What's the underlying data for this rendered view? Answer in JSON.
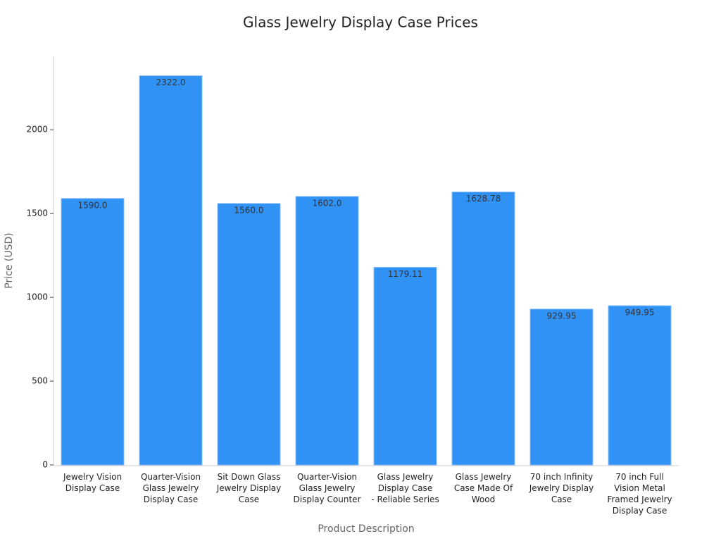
{
  "chart_data": {
    "type": "bar",
    "title": "Glass Jewelry Display Case Prices",
    "x_label": "Product Description",
    "y_label": "Price (USD)",
    "categories": [
      "Jewelry Vision\nDisplay Case",
      "Quarter-Vision\nGlass Jewelry\nDisplay Case",
      "Sit Down Glass\nJewelry Display\nCase",
      "Quarter-Vision\nGlass Jewelry\nDisplay Counter",
      "Glass Jewelry\nDisplay Case\n- Reliable Series",
      "Glass Jewelry\nCase Made Of\nWood",
      "70 inch Infinity\nJewelry Display\nCase",
      "70 inch Full\nVision Metal\nFramed Jewelry\nDisplay Case"
    ],
    "values": [
      1590,
      2322,
      1560,
      1602,
      1179.11,
      1628.78,
      929.95,
      949.95
    ],
    "value_labels": [
      "1590.0",
      "2322.0",
      "1560.0",
      "1602.0",
      "1179.11",
      "1628.78",
      "929.95",
      "949.95"
    ],
    "color": "#3092f5",
    "ylim": [
      0,
      2438.1
    ],
    "yticks": [
      0,
      500,
      1000,
      1500,
      2000
    ],
    "grid": false
  }
}
